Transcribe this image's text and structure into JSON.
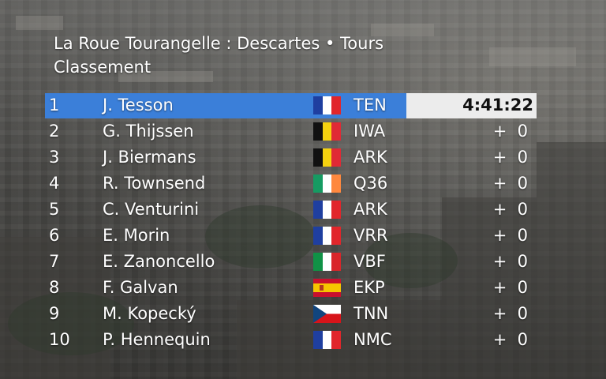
{
  "header": {
    "title": "La Roue Tourangelle : Descartes •  Tours",
    "subtitle": "Classement"
  },
  "rows": [
    {
      "pos": "1",
      "name": "J. Tesson",
      "flag": "fr",
      "team": "TEN",
      "gap": "4:41:22"
    },
    {
      "pos": "2",
      "name": "G. Thijssen",
      "flag": "be",
      "team": "IWA",
      "gap": "+  0"
    },
    {
      "pos": "3",
      "name": "J. Biermans",
      "flag": "be",
      "team": "ARK",
      "gap": "+  0"
    },
    {
      "pos": "4",
      "name": "R. Townsend",
      "flag": "ie",
      "team": "Q36",
      "gap": "+  0"
    },
    {
      "pos": "5",
      "name": "C. Venturini",
      "flag": "fr",
      "team": "ARK",
      "gap": "+  0"
    },
    {
      "pos": "6",
      "name": "E. Morin",
      "flag": "fr",
      "team": "VRR",
      "gap": "+  0"
    },
    {
      "pos": "7",
      "name": "E. Zanoncello",
      "flag": "it",
      "team": "VBF",
      "gap": "+  0"
    },
    {
      "pos": "8",
      "name": "F. Galvan",
      "flag": "es",
      "team": "EKP",
      "gap": "+  0"
    },
    {
      "pos": "9",
      "name": "M. Kopecký",
      "flag": "cz",
      "team": "TNN",
      "gap": "+  0"
    },
    {
      "pos": "10",
      "name": "P. Hennequin",
      "flag": "fr",
      "team": "NMC",
      "gap": "+  0"
    }
  ],
  "colors": {
    "leader_bar": "#3b7fd9",
    "time_box": "#ececec",
    "text": "#ffffff"
  }
}
